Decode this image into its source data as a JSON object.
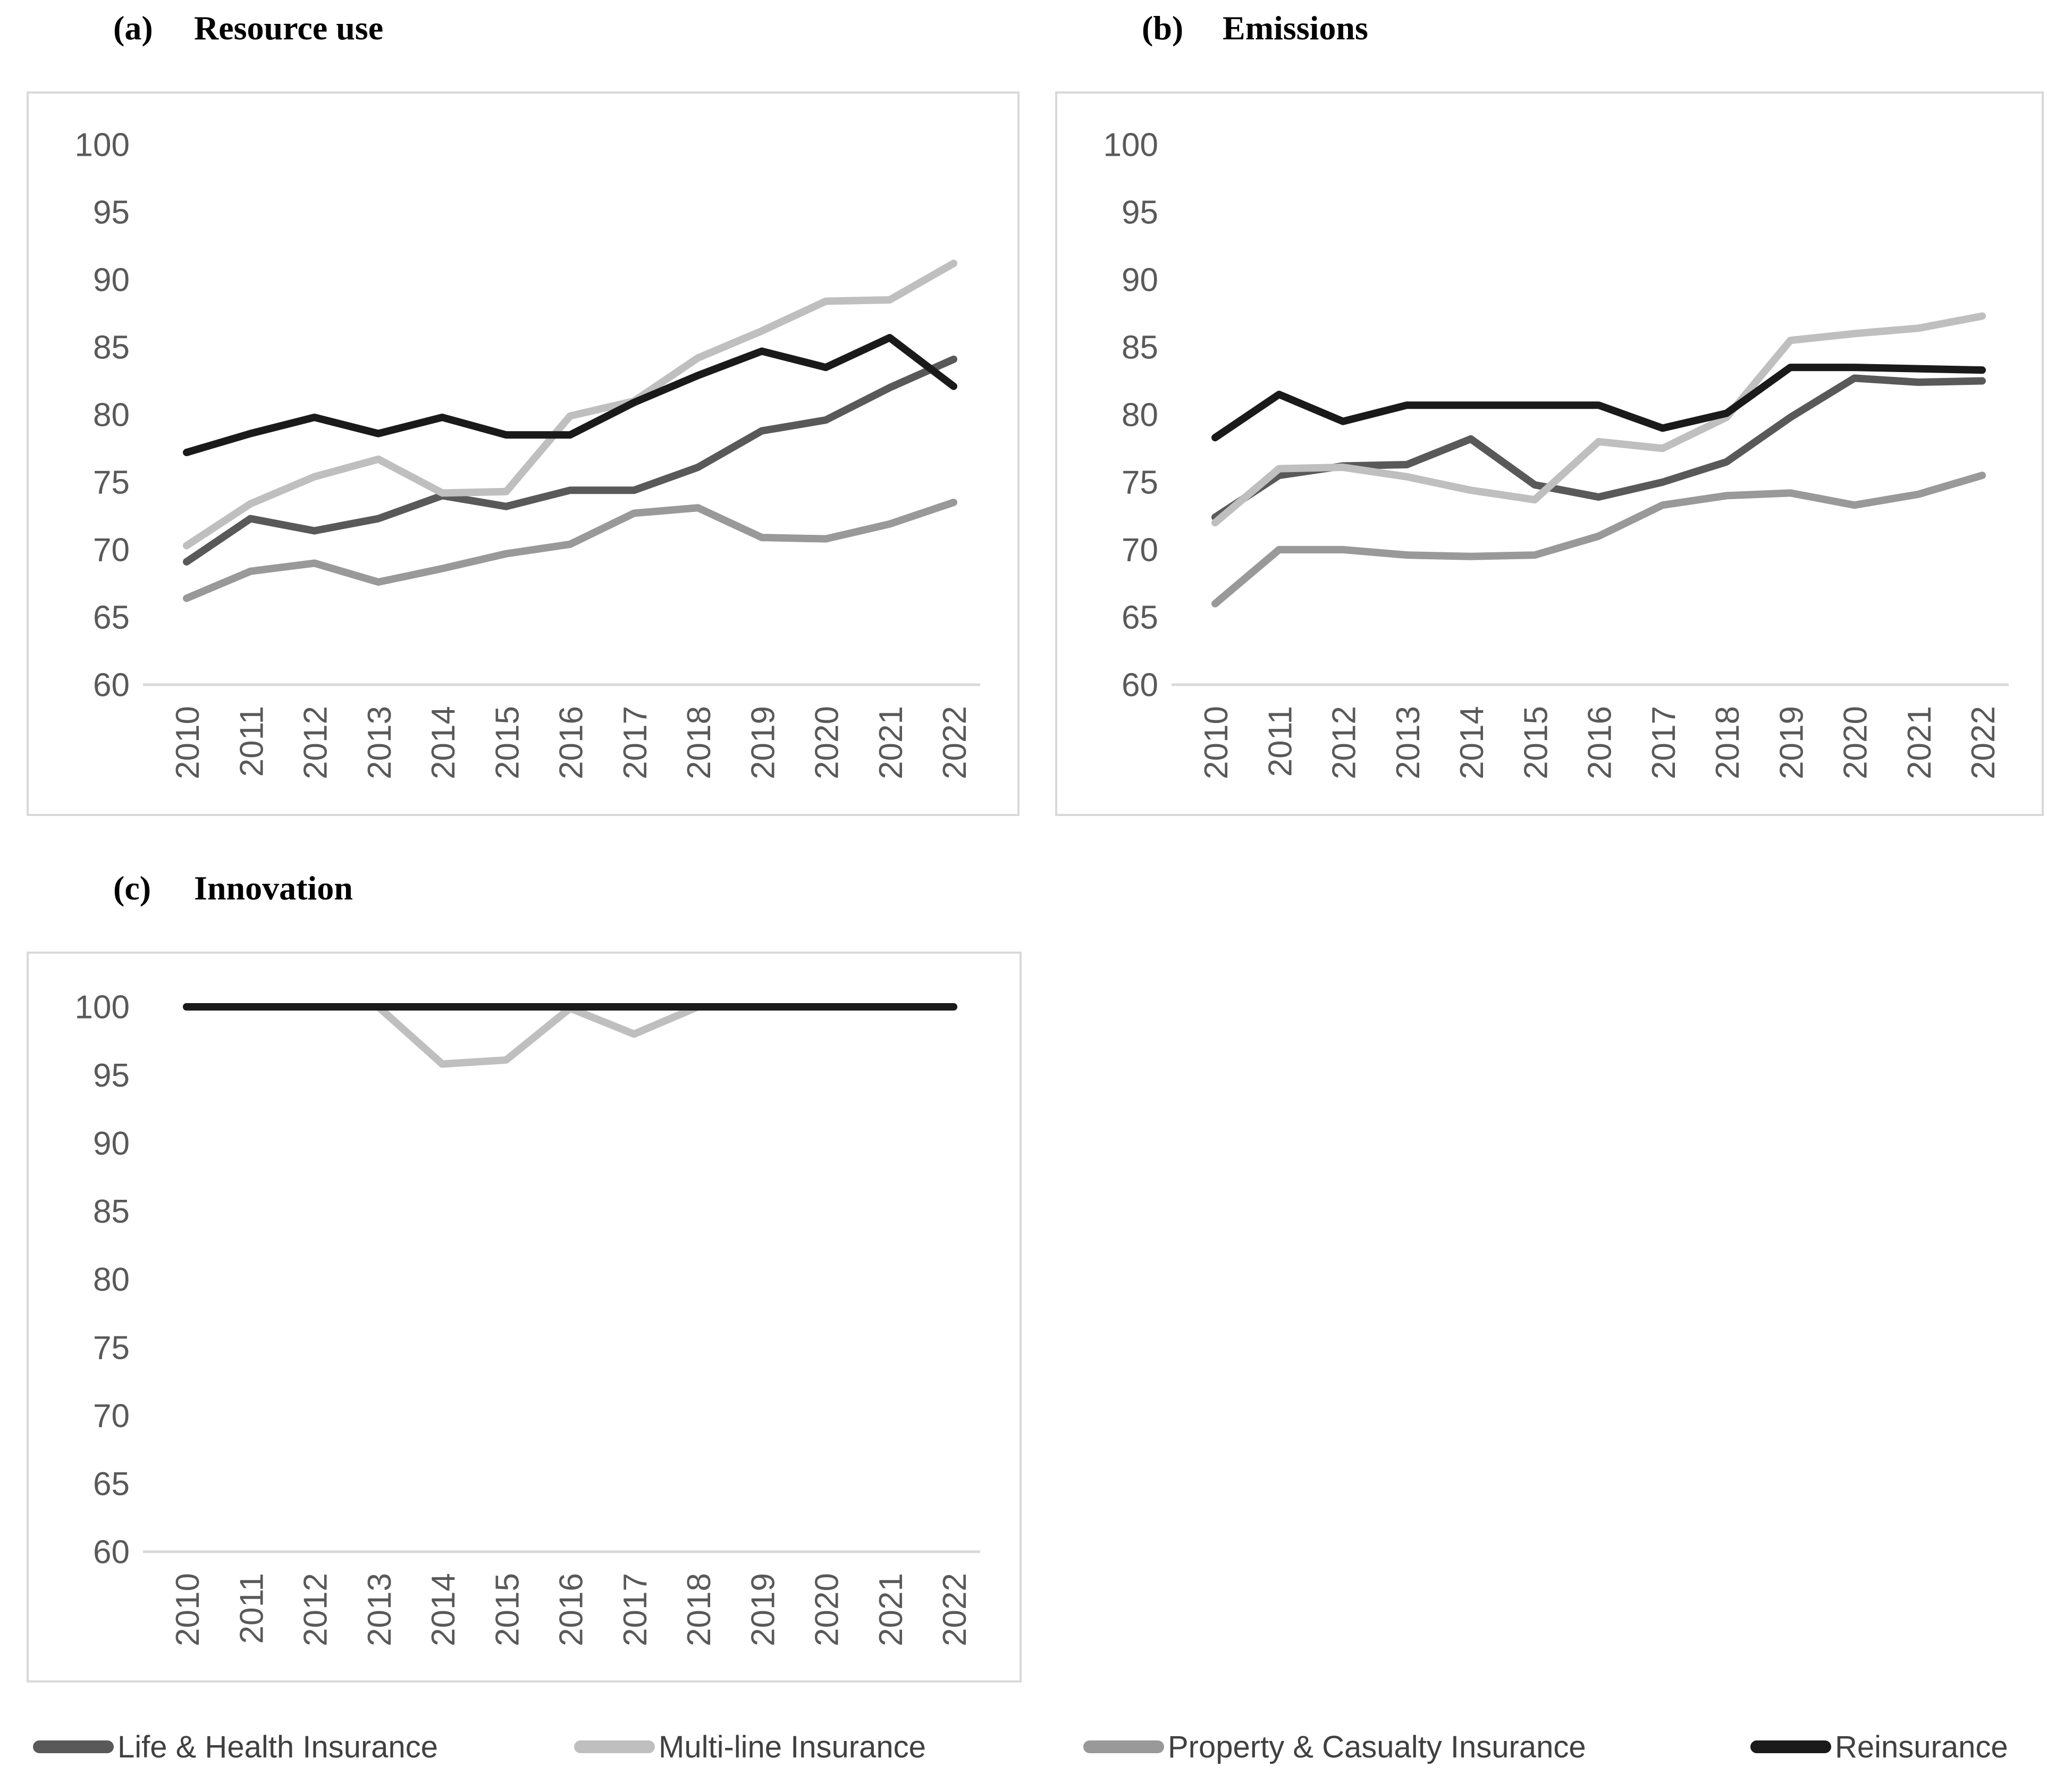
{
  "figure": {
    "panels": [
      {
        "label": "(a)",
        "title": "Resource use"
      },
      {
        "label": "(b)",
        "title": "Emissions"
      },
      {
        "label": "(c)",
        "title": "Innovation"
      }
    ],
    "legend": [
      {
        "name": "Life & Health Insurance",
        "color": "#595959"
      },
      {
        "name": "Multi-line Insurance",
        "color": "#bfbfbf"
      },
      {
        "name": "Property & Casualty Insurance",
        "color": "#999999"
      },
      {
        "name": "Reinsurance",
        "color": "#1a1a1a"
      }
    ],
    "colors": {
      "axis_line": "#d9d9d9",
      "tick_label": "#595959",
      "panel_border": "#d9d9d9"
    }
  },
  "chart_data": [
    {
      "type": "line",
      "title": "Resource use",
      "panel": "a",
      "x": [
        "2010",
        "2011",
        "2012",
        "2013",
        "2014",
        "2015",
        "2016",
        "2017",
        "2018",
        "2019",
        "2020",
        "2021",
        "2022"
      ],
      "ylim": [
        60,
        100
      ],
      "y_ticks": [
        100,
        95,
        90,
        85,
        80,
        75,
        70,
        65,
        60
      ],
      "grid": false,
      "legend_position": "bottom-shared",
      "series": [
        {
          "name": "Life & Health Insurance",
          "color": "#595959",
          "values": [
            69.1,
            72.3,
            71.4,
            72.3,
            74.0,
            73.2,
            74.4,
            74.4,
            76.1,
            78.8,
            79.6,
            82.0,
            84.1
          ]
        },
        {
          "name": "Multi-line Insurance",
          "color": "#bfbfbf",
          "values": [
            70.3,
            73.4,
            75.4,
            76.7,
            74.2,
            74.3,
            79.9,
            81.0,
            84.2,
            86.2,
            88.4,
            88.5,
            91.2
          ]
        },
        {
          "name": "Property & Casualty Insurance",
          "color": "#999999",
          "values": [
            66.4,
            68.4,
            69.0,
            67.6,
            68.6,
            69.7,
            70.4,
            72.7,
            73.1,
            70.9,
            70.8,
            71.9,
            73.5
          ]
        },
        {
          "name": "Reinsurance",
          "color": "#1a1a1a",
          "values": [
            77.2,
            78.6,
            79.8,
            78.6,
            79.8,
            78.5,
            78.5,
            80.9,
            82.9,
            84.7,
            83.5,
            85.7,
            82.1
          ]
        }
      ]
    },
    {
      "type": "line",
      "title": "Emissions",
      "panel": "b",
      "x": [
        "2010",
        "2011",
        "2012",
        "2013",
        "2014",
        "2015",
        "2016",
        "2017",
        "2018",
        "2019",
        "2020",
        "2021",
        "2022"
      ],
      "ylim": [
        60,
        100
      ],
      "y_ticks": [
        100,
        95,
        90,
        85,
        80,
        75,
        70,
        65,
        60
      ],
      "grid": false,
      "legend_position": "bottom-shared",
      "series": [
        {
          "name": "Life & Health Insurance",
          "color": "#595959",
          "values": [
            72.4,
            75.5,
            76.2,
            76.3,
            78.2,
            74.8,
            73.9,
            75.0,
            76.5,
            79.8,
            82.7,
            82.4,
            82.5
          ]
        },
        {
          "name": "Multi-line Insurance",
          "color": "#bfbfbf",
          "values": [
            72.0,
            76.0,
            76.1,
            75.4,
            74.4,
            73.7,
            78.0,
            77.5,
            79.8,
            85.5,
            86.0,
            86.4,
            87.3
          ]
        },
        {
          "name": "Property & Casualty Insurance",
          "color": "#999999",
          "values": [
            66.0,
            70.0,
            70.0,
            69.6,
            69.5,
            69.6,
            71.0,
            73.3,
            74.0,
            74.2,
            73.3,
            74.1,
            75.5
          ]
        },
        {
          "name": "Reinsurance",
          "color": "#1a1a1a",
          "values": [
            78.3,
            81.5,
            79.5,
            80.7,
            80.7,
            80.7,
            80.7,
            79.0,
            80.1,
            83.5,
            83.5,
            83.4,
            83.3
          ]
        }
      ]
    },
    {
      "type": "line",
      "title": "Innovation",
      "panel": "c",
      "x": [
        "2010",
        "2011",
        "2012",
        "2013",
        "2014",
        "2015",
        "2016",
        "2017",
        "2018",
        "2019",
        "2020",
        "2021",
        "2022"
      ],
      "ylim": [
        60,
        100
      ],
      "y_ticks": [
        100,
        95,
        90,
        85,
        80,
        75,
        70,
        65,
        60
      ],
      "grid": false,
      "legend_position": "bottom-shared",
      "series": [
        {
          "name": "Life & Health Insurance",
          "color": "#595959",
          "values": [
            100,
            100,
            100,
            100,
            100,
            100,
            100,
            100,
            100,
            100,
            100,
            100,
            100
          ]
        },
        {
          "name": "Multi-line Insurance",
          "color": "#bfbfbf",
          "values": [
            100,
            100,
            100,
            100,
            95.8,
            96.1,
            99.9,
            98.0,
            100,
            100,
            100,
            100,
            100
          ]
        },
        {
          "name": "Property & Casualty Insurance",
          "color": "#999999",
          "values": [
            100,
            100,
            100,
            100,
            100,
            100,
            100,
            100,
            100,
            100,
            100,
            100,
            100
          ]
        },
        {
          "name": "Reinsurance",
          "color": "#1a1a1a",
          "values": [
            100,
            100,
            100,
            100,
            100,
            100,
            100,
            100,
            100,
            100,
            100,
            100,
            100
          ]
        }
      ]
    }
  ]
}
